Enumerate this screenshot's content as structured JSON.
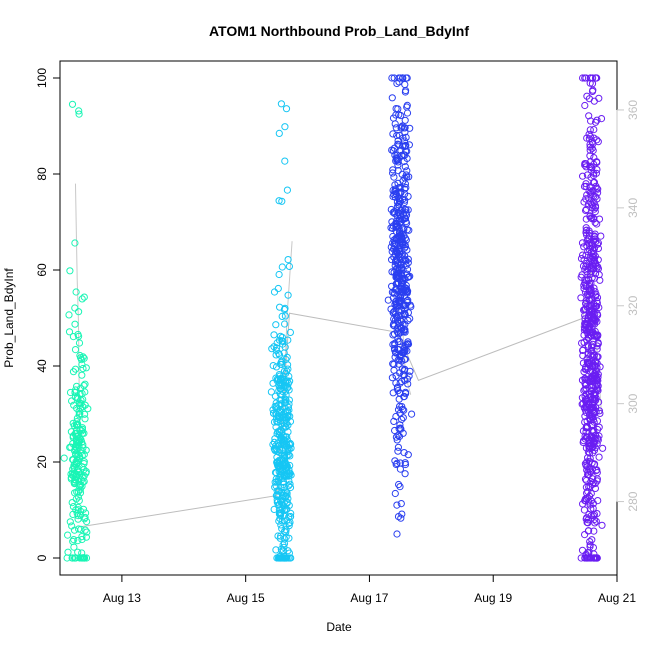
{
  "chart_data": {
    "type": "scatter",
    "title": "ATOM1 Northbound Prob_Land_BdyInf",
    "xlabel": "Date",
    "ylabel": "Prob_Land_BdyInf",
    "x_ticks": [
      "Aug 13",
      "Aug 15",
      "Aug 17",
      "Aug 19",
      "Aug 21"
    ],
    "x_tick_dates": [
      "2023-08-13",
      "2023-08-15",
      "2023-08-17",
      "2023-08-19",
      "2023-08-21"
    ],
    "xlim": [
      "2023-08-12",
      "2023-08-21"
    ],
    "ylim": [
      0,
      100
    ],
    "y_ticks": [
      0,
      20,
      40,
      60,
      80,
      100
    ],
    "y2_ticks": [
      280,
      300,
      320,
      340,
      360
    ],
    "y2lim": [
      265,
      370
    ],
    "grid": false,
    "clusters": [
      {
        "date": "2023-08-12T07:00",
        "color": "#19f5b5",
        "y_center": 20,
        "y_spread": 13,
        "y_min": 0,
        "y_max": 100,
        "count": 220,
        "secondary_line_points": [
          [
            "2023-08-12T06:00",
            78
          ],
          [
            "2023-08-12T06:40",
            58
          ],
          [
            "2023-08-12T07:10",
            49
          ],
          [
            "2023-08-12T07:30",
            32
          ],
          [
            "2023-08-12T07:50",
            22
          ]
        ]
      },
      {
        "date": "2023-08-15T14:00",
        "color": "#16c6f4",
        "y_center": 22,
        "y_spread": 14,
        "y_min": 0,
        "y_max": 96,
        "count": 380,
        "secondary_line_points": [
          [
            "2023-08-15T12:00",
            13
          ],
          [
            "2023-08-15T14:00",
            20
          ],
          [
            "2023-08-15T15:00",
            35
          ],
          [
            "2023-08-15T16:00",
            50
          ],
          [
            "2023-08-15T18:00",
            66
          ]
        ]
      },
      {
        "date": "2023-08-17T12:00",
        "color": "#2a3ff0",
        "y_center": 58,
        "y_spread": 19,
        "y_min": 5,
        "y_max": 100,
        "count": 470,
        "secondary_line_points": [
          [
            "2023-08-17T10:00",
            47
          ],
          [
            "2023-08-17T12:00",
            56
          ],
          [
            "2023-08-17T14:00",
            38
          ],
          [
            "2023-08-17T16:00",
            34
          ]
        ]
      },
      {
        "date": "2023-08-20T14:00",
        "color": "#6a1ef2",
        "y_center": 45,
        "y_spread": 24,
        "y_min": 0,
        "y_max": 100,
        "count": 620,
        "secondary_line_points": [
          [
            "2023-08-20T10:00",
            48
          ],
          [
            "2023-08-20T14:00",
            60
          ],
          [
            "2023-08-20T18:00",
            30
          ]
        ]
      }
    ],
    "connector_line": [
      {
        "date": "2023-08-12T08:00",
        "value": 6.5
      },
      {
        "date": "2023-08-15T12:00",
        "value": 13
      },
      {
        "date": "2023-08-15T17:00",
        "value": 51
      },
      {
        "date": "2023-08-17T11:00",
        "value": 47
      },
      {
        "date": "2023-08-17T19:00",
        "value": 37
      },
      {
        "date": "2023-08-20T11:00",
        "value": 50
      }
    ]
  }
}
